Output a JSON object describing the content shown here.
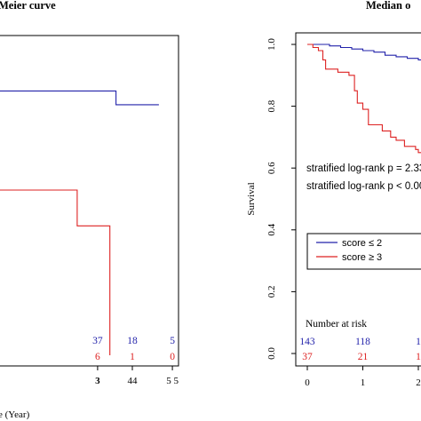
{
  "colors": {
    "high_risk": "#2222aa",
    "low_risk": "#dd2222",
    "axis": "#000000"
  },
  "chart_data": [
    {
      "type": "line",
      "title": "Meier curve",
      "xlabel": "e (Year)",
      "x_ticks": [
        "3",
        "44",
        "5  5"
      ],
      "series": [
        {
          "color": "#2222aa",
          "x": [
            0,
            3.6,
            3.6,
            4.65
          ],
          "y": [
            0.96,
            0.96,
            0.91,
            0.91
          ]
        },
        {
          "color": "#dd2222",
          "x": [
            0,
            2.65,
            2.65,
            3.45,
            3.45,
            3.45
          ],
          "y": [
            0.6,
            0.6,
            0.47,
            0.47,
            0.0,
            0.0
          ]
        }
      ],
      "risk_table": {
        "rows": [
          {
            "color": "#2222aa",
            "values": [
              "37",
              "18",
              "5"
            ]
          },
          {
            "color": "#dd2222",
            "values": [
              "6",
              "1",
              "0"
            ]
          }
        ]
      }
    },
    {
      "type": "line",
      "title": "Median o",
      "ylabel": "Survival",
      "xlim": [
        0,
        2.2
      ],
      "ylim": [
        0,
        1.0
      ],
      "x_ticks": [
        0,
        1,
        2
      ],
      "y_ticks": [
        "0.0",
        "0.2",
        "0.4",
        "0.6",
        "0.8",
        "1.0"
      ],
      "annotations": [
        "stratified log-rank p = 2.33",
        "stratified log-rank p < 0.00"
      ],
      "legend": {
        "position": "center-right",
        "entries": [
          "score ≤ 2",
          "score ≥ 3"
        ]
      },
      "series": [
        {
          "name": "score ≤ 2",
          "color": "#2222aa",
          "x": [
            0,
            0.2,
            0.4,
            0.6,
            0.8,
            1.0,
            1.2,
            1.4,
            1.6,
            1.8,
            2.0,
            2.2
          ],
          "y": [
            1.0,
            1.0,
            0.995,
            0.99,
            0.985,
            0.98,
            0.975,
            0.965,
            0.96,
            0.955,
            0.95,
            0.94
          ]
        },
        {
          "name": "score ≥ 3",
          "color": "#dd2222",
          "x": [
            0,
            0.1,
            0.2,
            0.28,
            0.33,
            0.45,
            0.55,
            0.75,
            0.85,
            0.9,
            1.0,
            1.1,
            1.2,
            1.35,
            1.5,
            1.6,
            1.75,
            1.95,
            2.0,
            2.2
          ],
          "y": [
            1.0,
            0.99,
            0.98,
            0.95,
            0.92,
            0.92,
            0.91,
            0.9,
            0.85,
            0.81,
            0.79,
            0.74,
            0.74,
            0.72,
            0.7,
            0.69,
            0.67,
            0.66,
            0.65,
            0.65
          ]
        }
      ],
      "risk_table": {
        "title": "Number at risk",
        "rows": [
          {
            "color": "#2222aa",
            "values": [
              "143",
              "118",
              "1"
            ]
          },
          {
            "color": "#dd2222",
            "values": [
              "37",
              "21",
              "1"
            ]
          }
        ]
      }
    }
  ]
}
